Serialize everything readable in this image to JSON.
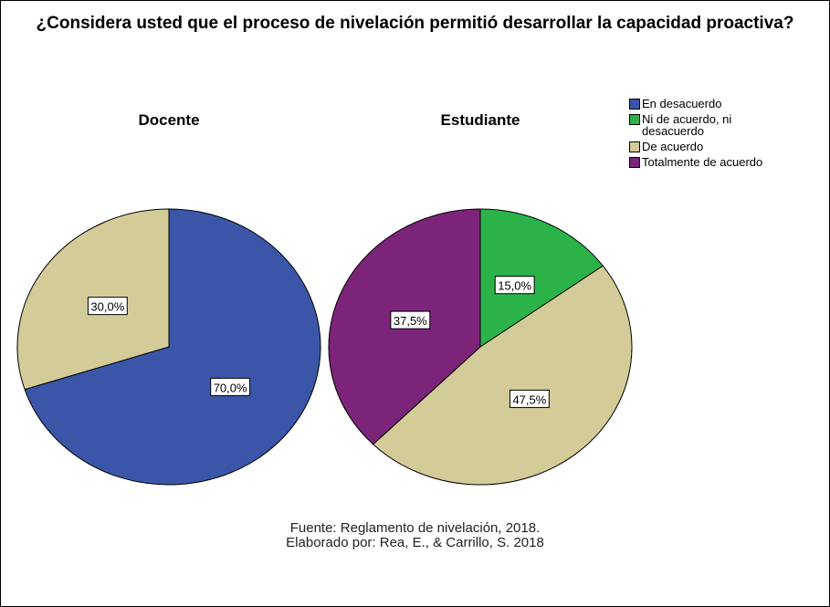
{
  "title": "¿Considera usted que el proceso de nivelación permitió desarrollar la capacidad proactiva?",
  "legend": [
    {
      "name": "En desacuerdo",
      "color": "#3b56a8"
    },
    {
      "name": "Ni de acuerdo, ni desacuerdo",
      "color": "#2bb34a"
    },
    {
      "name": "De acuerdo",
      "color": "#d4cc98"
    },
    {
      "name": "Totalmente de acuerdo",
      "color": "#7b2479"
    }
  ],
  "source": [
    "Fuente: Reglamento de nivelación, 2018.",
    "Elaborado por: Rea, E., & Carrillo, S. 2018"
  ],
  "chart_data": [
    {
      "type": "pie",
      "title": "Docente",
      "categories": [
        "En desacuerdo",
        "De acuerdo"
      ],
      "values": [
        70,
        30
      ],
      "value_labels": [
        "70,0%",
        "30,0%"
      ]
    },
    {
      "type": "pie",
      "title": "Estudiante",
      "categories": [
        "Ni de acuerdo, ni desacuerdo",
        "De acuerdo",
        "Totalmente de acuerdo"
      ],
      "values": [
        15,
        47.5,
        37.5
      ],
      "value_labels": [
        "15,0%",
        "47,5%",
        "37,5%"
      ]
    }
  ]
}
